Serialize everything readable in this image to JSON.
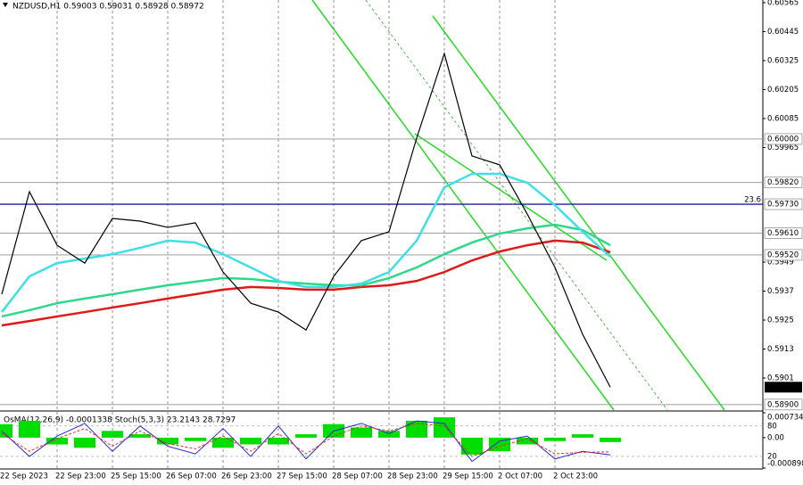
{
  "chart_data": [
    {
      "type": "line",
      "title": "NZDUSD,H1 0.59003 0.59031 0.58928 0.58972",
      "categories": [
        "22 Sep 2023",
        null,
        "22 Sep 23:00",
        null,
        "25 Sep 15:00",
        null,
        "26 Sep 07:00",
        null,
        "26 Sep 23:00",
        null,
        "27 Sep 15:00",
        null,
        "28 Sep 07:00",
        null,
        "28 Sep 23:00",
        null,
        "29 Sep 15:00",
        null,
        "2 Oct 07:00",
        null,
        "2 Oct 23:00",
        null,
        null
      ],
      "series": [
        {
          "color": "#000000",
          "values": [
            0.59357,
            0.59782,
            0.5956,
            0.59486,
            0.59671,
            0.5966,
            0.59634,
            0.59653,
            0.59449,
            0.5932,
            0.59283,
            0.59209,
            0.59431,
            0.59579,
            0.59616,
            0.60004,
            0.60354,
            0.5993,
            0.59893,
            0.59689,
            0.59468,
            0.59191,
            0.58972
          ]
        },
        {
          "color": "#3ee0e8",
          "values": [
            0.59283,
            0.59431,
            0.59486,
            0.59505,
            0.59523,
            0.59549,
            0.59579,
            0.59571,
            0.59523,
            0.59468,
            0.59412,
            0.59387,
            0.59387,
            0.59401,
            0.59449,
            0.59579,
            0.598,
            0.59856,
            0.59856,
            0.59819,
            0.59726,
            0.59616,
            0.59512
          ]
        },
        {
          "color": "#2ed88a",
          "values": [
            0.59265,
            0.59291,
            0.5932,
            0.59339,
            0.59357,
            0.59376,
            0.59394,
            0.59409,
            0.59424,
            0.5942,
            0.59409,
            0.59401,
            0.59394,
            0.59394,
            0.59424,
            0.59468,
            0.59523,
            0.59571,
            0.59608,
            0.5963,
            0.59645,
            0.59623,
            0.5956
          ]
        },
        {
          "color": "#e01818",
          "values": [
            0.59228,
            0.59246,
            0.59265,
            0.59283,
            0.59302,
            0.5932,
            0.59339,
            0.59357,
            0.59376,
            0.59387,
            0.59383,
            0.59376,
            0.59376,
            0.59387,
            0.59394,
            0.59412,
            0.59449,
            0.59497,
            0.59534,
            0.5956,
            0.59579,
            0.59571,
            0.59531
          ]
        }
      ],
      "ylim": [
        0.58877,
        0.60576
      ],
      "yticks": [
        0.60565,
        0.60445,
        0.60325,
        0.60205,
        0.60085,
        0.59965,
        0.5949,
        0.5937,
        0.5925,
        0.5913,
        0.5901
      ],
      "levels": [
        {
          "value": 0.6,
          "label": "0.60000",
          "color": "#909090"
        },
        {
          "value": 0.5982,
          "label": "0.59820",
          "color": "#909090"
        },
        {
          "value": 0.5973,
          "label": "0.59730",
          "color": "#20209a",
          "note": "23.6"
        },
        {
          "value": 0.5961,
          "label": "0.59610",
          "color": "#909090"
        },
        {
          "value": 0.5952,
          "label": "0.59520",
          "color": "#909090"
        },
        {
          "value": 0.589,
          "label": "0.58900",
          "color": "#909090"
        }
      ],
      "grid": true
    },
    {
      "type": "bar",
      "title": "OsMA(12,26,9) -0.0001338 Stoch(5,3,3) 23.2143 28.7297",
      "series": [
        {
          "color": "#00dd00",
          "values": [
            0.0004,
            0.0005,
            -0.0002,
            -0.0003,
            0.0002,
            0.0001,
            -0.0002,
            -0.0001,
            -0.0003,
            -0.0002,
            -0.0002,
            0.0001,
            0.0004,
            0.0003,
            0.0002,
            0.0005,
            0.0006,
            -0.0005,
            -0.0004,
            -0.0002,
            -0.0001,
            0.0001,
            -0.00013
          ]
        },
        {
          "color": "#2a2ad0",
          "axis": "y2",
          "values": [
            70,
            20,
            60,
            85,
            30,
            80,
            40,
            25,
            75,
            20,
            80,
            15,
            70,
            85,
            65,
            90,
            85,
            10,
            50,
            60,
            15,
            30,
            23
          ]
        },
        {
          "color": "#e03030",
          "axis": "y2",
          "dashed": true,
          "values": [
            65,
            30,
            55,
            75,
            40,
            70,
            45,
            35,
            60,
            30,
            65,
            25,
            60,
            80,
            70,
            85,
            80,
            20,
            40,
            55,
            25,
            28,
            29
          ]
        }
      ],
      "ylim": [
        -0.000898,
        0.0007344
      ],
      "yticks": [
        0.0007344,
        {
          "value": 0,
          "label": "0.00"
        },
        -0.000898
      ],
      "y2lim": [
        -3,
        106
      ],
      "y2ticks": [
        80,
        20
      ]
    }
  ]
}
